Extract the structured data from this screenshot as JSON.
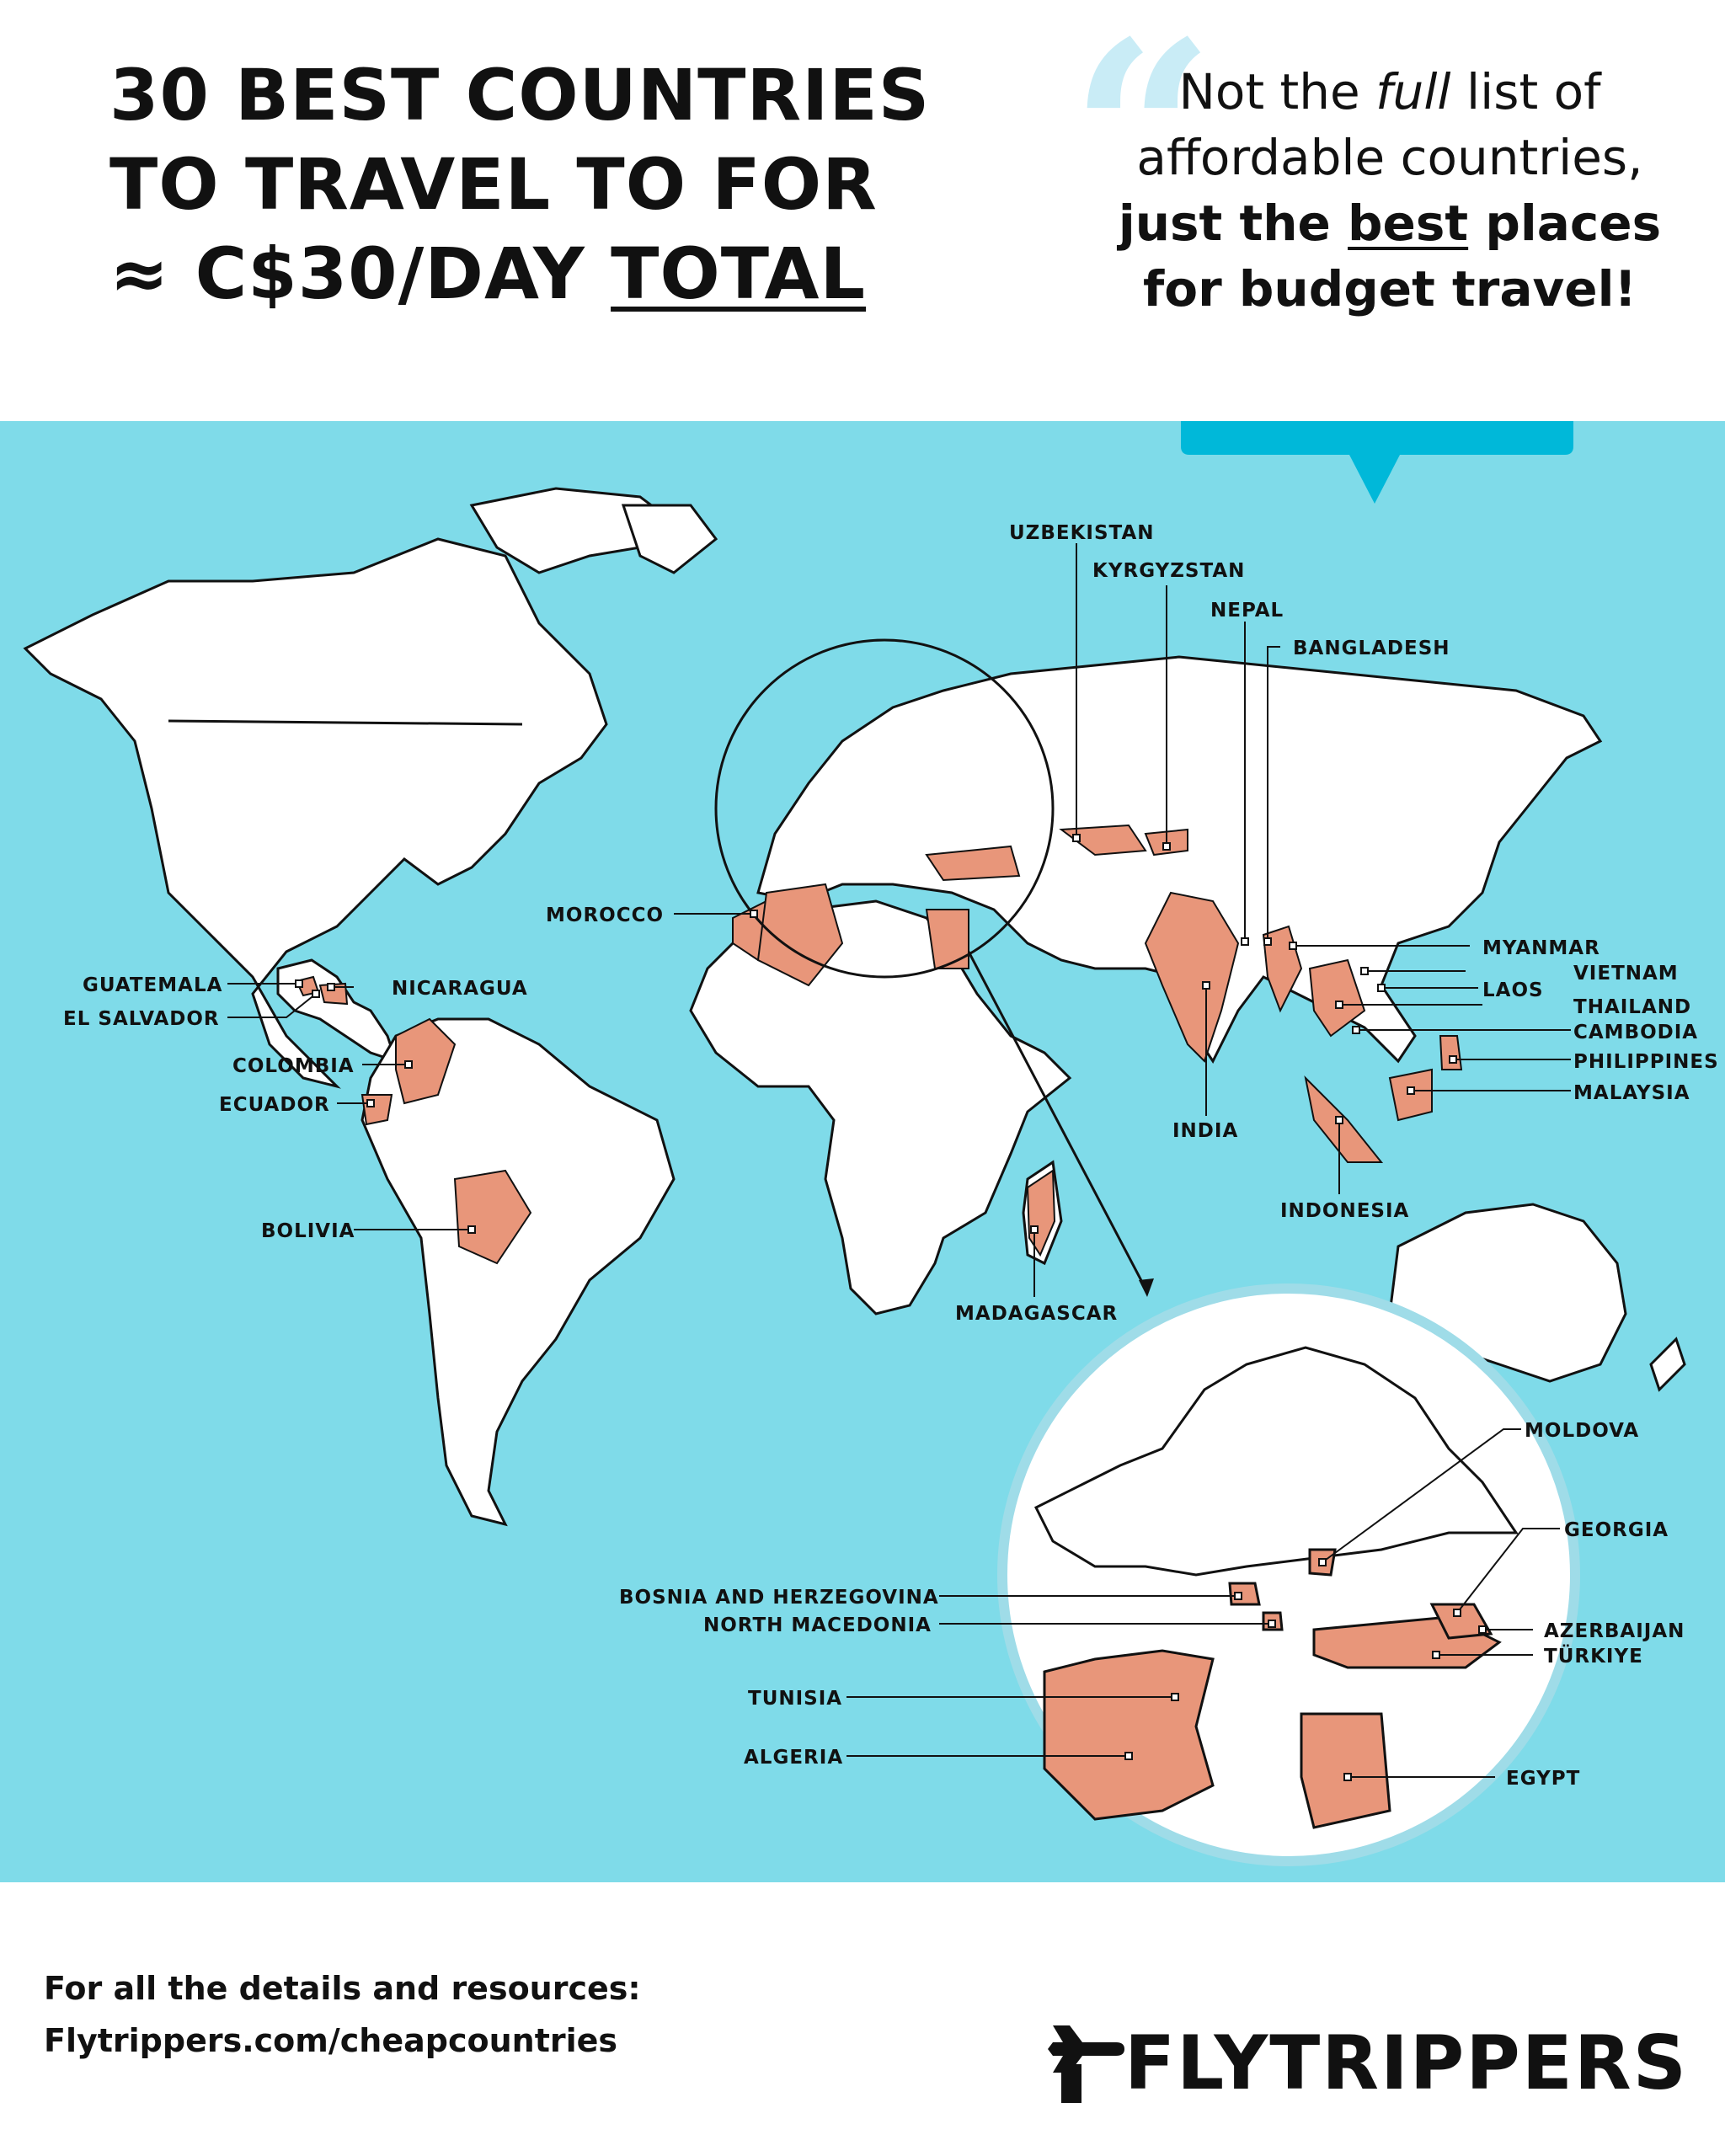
{
  "title": {
    "line1": "30 BEST COUNTRIES",
    "line2": "TO TRAVEL TO FOR",
    "line3_prefix": "≈ C$30/DAY ",
    "line3_underlined": "TOTAL"
  },
  "quote": {
    "part1": "Not the ",
    "italic": "full",
    "part2": " list of",
    "line2": "affordable countries,",
    "line3_prefix": "just the ",
    "line3_underlined": "best",
    "line3_suffix": " places",
    "line4": "for budget travel!"
  },
  "labels": {
    "uzbekistan": "UZBEKISTAN",
    "kyrgyzstan": "KYRGYZSTAN",
    "nepal": "NEPAL",
    "bangladesh": "BANGLADESH",
    "morocco": "MOROCCO",
    "myanmar": "MYANMAR",
    "vietnam": "VIETNAM",
    "laos": "LAOS",
    "thailand": "THAILAND",
    "cambodia": "CAMBODIA",
    "philippines": "PHILIPPINES",
    "malaysia": "MALAYSIA",
    "india": "INDIA",
    "indonesia": "INDONESIA",
    "guatemala": "GUATEMALA",
    "el_salvador": "EL SALVADOR",
    "nicaragua": "NICARAGUA",
    "colombia": "COLOMBIA",
    "ecuador": "ECUADOR",
    "bolivia": "BOLIVIA",
    "madagascar": "MADAGASCAR",
    "moldova": "MOLDOVA",
    "georgia": "GEORGIA",
    "azerbaijan": "AZERBAIJAN",
    "turkiye": "TÜRKIYE",
    "bosnia": "BOSNIA AND HERZEGOVINA",
    "north_macedonia": "NORTH MACEDONIA",
    "tunisia": "TUNISIA",
    "algeria": "ALGERIA",
    "egypt": "EGYPT"
  },
  "footer": {
    "line1": "For all the details and resources:",
    "line2": "Flytrippers.com/cheapcountries"
  },
  "brand": {
    "name": "FLYTRIPPERS",
    "icon": "airplane-icon"
  },
  "colors": {
    "ocean": "#7fdbe9",
    "land": "#ffffff",
    "highlight": "#e8967a",
    "callout": "#00b8d9"
  }
}
